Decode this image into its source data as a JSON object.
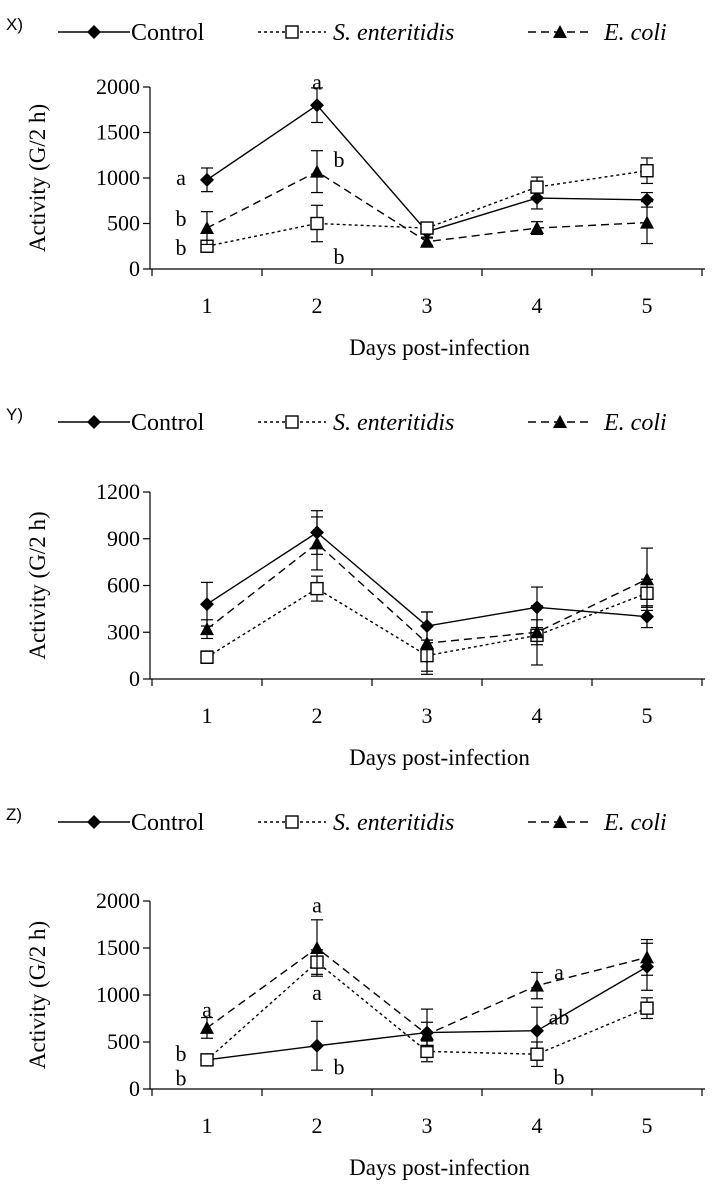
{
  "chart_data": [
    {
      "type": "line",
      "panel_label": "X)",
      "xlabel": "Days post-infection",
      "ylabel": "Activity  (G/2 h)",
      "x": [
        1,
        2,
        3,
        4,
        5
      ],
      "x_tick_labels": [
        "1",
        "2",
        "3",
        "4",
        "5"
      ],
      "ylim": [
        0,
        2000
      ],
      "y_ticks": [
        0,
        500,
        1000,
        1500,
        2000
      ],
      "y_tick_labels": [
        "0",
        "500",
        "1000",
        "1500",
        "2000"
      ],
      "grid": false,
      "legend_position": "top",
      "series": [
        {
          "name": "Control",
          "marker": "diamond",
          "line": "solid",
          "values": [
            980,
            1800,
            410,
            780,
            760
          ],
          "errors": [
            130,
            190,
            60,
            120,
            80
          ]
        },
        {
          "name": "S. enteritidis",
          "marker": "open-square",
          "line": "dotted",
          "values": [
            250,
            500,
            450,
            900,
            1080
          ],
          "errors": [
            60,
            200,
            60,
            110,
            140
          ]
        },
        {
          "name": "E. coli",
          "marker": "triangle",
          "line": "dashed",
          "values": [
            450,
            1070,
            300,
            450,
            510
          ],
          "errors": [
            180,
            230,
            40,
            70,
            230
          ]
        }
      ],
      "annotations": [
        {
          "text": "a",
          "x": 1,
          "y": 1000,
          "anchor": "left"
        },
        {
          "text": "b",
          "x": 1,
          "y": 550,
          "anchor": "left"
        },
        {
          "text": "b",
          "x": 1,
          "y": 230,
          "anchor": "left"
        },
        {
          "text": "a",
          "x": 2,
          "y": 2050,
          "anchor": "center"
        },
        {
          "text": "b",
          "x": 2,
          "y": 1200,
          "anchor": "right"
        },
        {
          "text": "b",
          "x": 2,
          "y": 130,
          "anchor": "right"
        }
      ]
    },
    {
      "type": "line",
      "panel_label": "Y)",
      "xlabel": "Days post-infection",
      "ylabel": "Activity  (G/2 h)",
      "x": [
        1,
        2,
        3,
        4,
        5
      ],
      "x_tick_labels": [
        "1",
        "2",
        "3",
        "4",
        "5"
      ],
      "ylim": [
        0,
        1200
      ],
      "y_ticks": [
        0,
        300,
        600,
        900,
        1200
      ],
      "y_tick_labels": [
        "0",
        "300",
        "600",
        "900",
        "1200"
      ],
      "grid": false,
      "legend_position": "top",
      "series": [
        {
          "name": "Control",
          "marker": "diamond",
          "line": "solid",
          "values": [
            480,
            940,
            340,
            460,
            400
          ],
          "errors": [
            140,
            140,
            90,
            130,
            70
          ]
        },
        {
          "name": "S. enteritidis",
          "marker": "open-square",
          "line": "dotted",
          "values": [
            140,
            580,
            150,
            280,
            550
          ],
          "errors": [
            40,
            80,
            100,
            190,
            90
          ]
        },
        {
          "name": "E. coli",
          "marker": "triangle",
          "line": "dashed",
          "values": [
            320,
            870,
            230,
            300,
            640
          ],
          "errors": [
            60,
            170,
            200,
            80,
            200
          ]
        }
      ],
      "annotations": []
    },
    {
      "type": "line",
      "panel_label": "Z)",
      "xlabel": "Days post-infection",
      "ylabel": "Activity  (G/2 h)",
      "x": [
        1,
        2,
        3,
        4,
        5
      ],
      "x_tick_labels": [
        "1",
        "2",
        "3",
        "4",
        "5"
      ],
      "ylim": [
        0,
        2000
      ],
      "y_ticks": [
        0,
        500,
        1000,
        1500,
        2000
      ],
      "y_tick_labels": [
        "0",
        "500",
        "1000",
        "1500",
        "2000"
      ],
      "grid": false,
      "legend_position": "top",
      "series": [
        {
          "name": "Control",
          "marker": "diamond",
          "line": "solid",
          "values": [
            310,
            460,
            600,
            620,
            1300
          ],
          "errors": [
            60,
            260,
            250,
            250,
            250
          ]
        },
        {
          "name": "S. enteritidis",
          "marker": "open-square",
          "line": "dotted",
          "values": [
            310,
            1350,
            400,
            370,
            860
          ],
          "errors": [
            60,
            130,
            110,
            130,
            110
          ]
        },
        {
          "name": "E. coli",
          "marker": "triangle",
          "line": "dashed",
          "values": [
            650,
            1500,
            580,
            1100,
            1400
          ],
          "errors": [
            110,
            300,
            130,
            140,
            190
          ]
        }
      ],
      "annotations": [
        {
          "text": "a",
          "x": 1,
          "y": 840,
          "anchor": "center"
        },
        {
          "text": "b",
          "x": 1,
          "y": 370,
          "anchor": "left"
        },
        {
          "text": "b",
          "x": 1,
          "y": 110,
          "anchor": "left"
        },
        {
          "text": "a",
          "x": 2,
          "y": 1950,
          "anchor": "center"
        },
        {
          "text": "a",
          "x": 2,
          "y": 1020,
          "anchor": "center"
        },
        {
          "text": "b",
          "x": 2,
          "y": 230,
          "anchor": "right"
        },
        {
          "text": "a",
          "x": 4,
          "y": 1240,
          "anchor": "right"
        },
        {
          "text": "ab",
          "x": 4,
          "y": 760,
          "anchor": "right"
        },
        {
          "text": "b",
          "x": 4,
          "y": 120,
          "anchor": "right"
        }
      ]
    }
  ]
}
